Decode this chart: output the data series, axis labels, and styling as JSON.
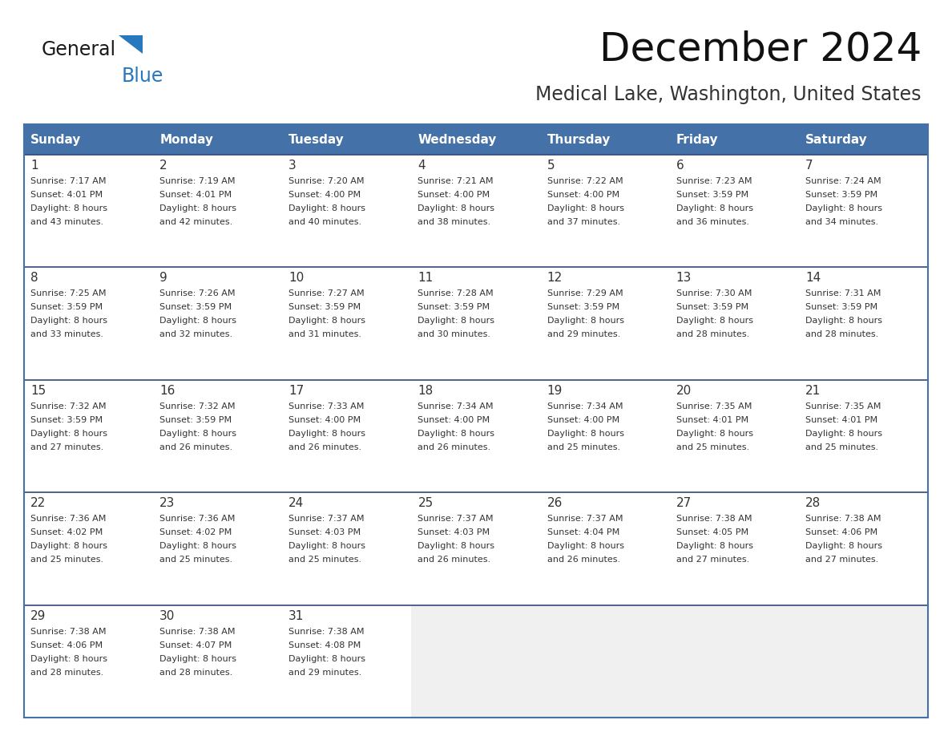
{
  "title": "December 2024",
  "subtitle": "Medical Lake, Washington, United States",
  "header_color": "#4472a8",
  "header_text_color": "#ffffff",
  "cell_bg_color": "#ffffff",
  "empty_cell_bg_color": "#f0f0f0",
  "row_border_color": "#2e4a7a",
  "outer_border_color": "#4472a8",
  "text_color": "#333333",
  "days_of_week": [
    "Sunday",
    "Monday",
    "Tuesday",
    "Wednesday",
    "Thursday",
    "Friday",
    "Saturday"
  ],
  "weeks": [
    [
      {
        "day": 1,
        "sunrise": "7:17 AM",
        "sunset": "4:01 PM",
        "daylight_line1": "Daylight: 8 hours",
        "daylight_line2": "and 43 minutes."
      },
      {
        "day": 2,
        "sunrise": "7:19 AM",
        "sunset": "4:01 PM",
        "daylight_line1": "Daylight: 8 hours",
        "daylight_line2": "and 42 minutes."
      },
      {
        "day": 3,
        "sunrise": "7:20 AM",
        "sunset": "4:00 PM",
        "daylight_line1": "Daylight: 8 hours",
        "daylight_line2": "and 40 minutes."
      },
      {
        "day": 4,
        "sunrise": "7:21 AM",
        "sunset": "4:00 PM",
        "daylight_line1": "Daylight: 8 hours",
        "daylight_line2": "and 38 minutes."
      },
      {
        "day": 5,
        "sunrise": "7:22 AM",
        "sunset": "4:00 PM",
        "daylight_line1": "Daylight: 8 hours",
        "daylight_line2": "and 37 minutes."
      },
      {
        "day": 6,
        "sunrise": "7:23 AM",
        "sunset": "3:59 PM",
        "daylight_line1": "Daylight: 8 hours",
        "daylight_line2": "and 36 minutes."
      },
      {
        "day": 7,
        "sunrise": "7:24 AM",
        "sunset": "3:59 PM",
        "daylight_line1": "Daylight: 8 hours",
        "daylight_line2": "and 34 minutes."
      }
    ],
    [
      {
        "day": 8,
        "sunrise": "7:25 AM",
        "sunset": "3:59 PM",
        "daylight_line1": "Daylight: 8 hours",
        "daylight_line2": "and 33 minutes."
      },
      {
        "day": 9,
        "sunrise": "7:26 AM",
        "sunset": "3:59 PM",
        "daylight_line1": "Daylight: 8 hours",
        "daylight_line2": "and 32 minutes."
      },
      {
        "day": 10,
        "sunrise": "7:27 AM",
        "sunset": "3:59 PM",
        "daylight_line1": "Daylight: 8 hours",
        "daylight_line2": "and 31 minutes."
      },
      {
        "day": 11,
        "sunrise": "7:28 AM",
        "sunset": "3:59 PM",
        "daylight_line1": "Daylight: 8 hours",
        "daylight_line2": "and 30 minutes."
      },
      {
        "day": 12,
        "sunrise": "7:29 AM",
        "sunset": "3:59 PM",
        "daylight_line1": "Daylight: 8 hours",
        "daylight_line2": "and 29 minutes."
      },
      {
        "day": 13,
        "sunrise": "7:30 AM",
        "sunset": "3:59 PM",
        "daylight_line1": "Daylight: 8 hours",
        "daylight_line2": "and 28 minutes."
      },
      {
        "day": 14,
        "sunrise": "7:31 AM",
        "sunset": "3:59 PM",
        "daylight_line1": "Daylight: 8 hours",
        "daylight_line2": "and 28 minutes."
      }
    ],
    [
      {
        "day": 15,
        "sunrise": "7:32 AM",
        "sunset": "3:59 PM",
        "daylight_line1": "Daylight: 8 hours",
        "daylight_line2": "and 27 minutes."
      },
      {
        "day": 16,
        "sunrise": "7:32 AM",
        "sunset": "3:59 PM",
        "daylight_line1": "Daylight: 8 hours",
        "daylight_line2": "and 26 minutes."
      },
      {
        "day": 17,
        "sunrise": "7:33 AM",
        "sunset": "4:00 PM",
        "daylight_line1": "Daylight: 8 hours",
        "daylight_line2": "and 26 minutes."
      },
      {
        "day": 18,
        "sunrise": "7:34 AM",
        "sunset": "4:00 PM",
        "daylight_line1": "Daylight: 8 hours",
        "daylight_line2": "and 26 minutes."
      },
      {
        "day": 19,
        "sunrise": "7:34 AM",
        "sunset": "4:00 PM",
        "daylight_line1": "Daylight: 8 hours",
        "daylight_line2": "and 25 minutes."
      },
      {
        "day": 20,
        "sunrise": "7:35 AM",
        "sunset": "4:01 PM",
        "daylight_line1": "Daylight: 8 hours",
        "daylight_line2": "and 25 minutes."
      },
      {
        "day": 21,
        "sunrise": "7:35 AM",
        "sunset": "4:01 PM",
        "daylight_line1": "Daylight: 8 hours",
        "daylight_line2": "and 25 minutes."
      }
    ],
    [
      {
        "day": 22,
        "sunrise": "7:36 AM",
        "sunset": "4:02 PM",
        "daylight_line1": "Daylight: 8 hours",
        "daylight_line2": "and 25 minutes."
      },
      {
        "day": 23,
        "sunrise": "7:36 AM",
        "sunset": "4:02 PM",
        "daylight_line1": "Daylight: 8 hours",
        "daylight_line2": "and 25 minutes."
      },
      {
        "day": 24,
        "sunrise": "7:37 AM",
        "sunset": "4:03 PM",
        "daylight_line1": "Daylight: 8 hours",
        "daylight_line2": "and 25 minutes."
      },
      {
        "day": 25,
        "sunrise": "7:37 AM",
        "sunset": "4:03 PM",
        "daylight_line1": "Daylight: 8 hours",
        "daylight_line2": "and 26 minutes."
      },
      {
        "day": 26,
        "sunrise": "7:37 AM",
        "sunset": "4:04 PM",
        "daylight_line1": "Daylight: 8 hours",
        "daylight_line2": "and 26 minutes."
      },
      {
        "day": 27,
        "sunrise": "7:38 AM",
        "sunset": "4:05 PM",
        "daylight_line1": "Daylight: 8 hours",
        "daylight_line2": "and 27 minutes."
      },
      {
        "day": 28,
        "sunrise": "7:38 AM",
        "sunset": "4:06 PM",
        "daylight_line1": "Daylight: 8 hours",
        "daylight_line2": "and 27 minutes."
      }
    ],
    [
      {
        "day": 29,
        "sunrise": "7:38 AM",
        "sunset": "4:06 PM",
        "daylight_line1": "Daylight: 8 hours",
        "daylight_line2": "and 28 minutes."
      },
      {
        "day": 30,
        "sunrise": "7:38 AM",
        "sunset": "4:07 PM",
        "daylight_line1": "Daylight: 8 hours",
        "daylight_line2": "and 28 minutes."
      },
      {
        "day": 31,
        "sunrise": "7:38 AM",
        "sunset": "4:08 PM",
        "daylight_line1": "Daylight: 8 hours",
        "daylight_line2": "and 29 minutes."
      },
      null,
      null,
      null,
      null
    ]
  ],
  "logo_text_general": "General",
  "logo_text_blue": "Blue",
  "logo_color_general": "#1a1a1a",
  "logo_color_blue": "#2878be",
  "logo_triangle_color": "#2878be",
  "title_fontsize": 36,
  "subtitle_fontsize": 17,
  "header_fontsize": 11,
  "day_num_fontsize": 11,
  "cell_text_fontsize": 8
}
